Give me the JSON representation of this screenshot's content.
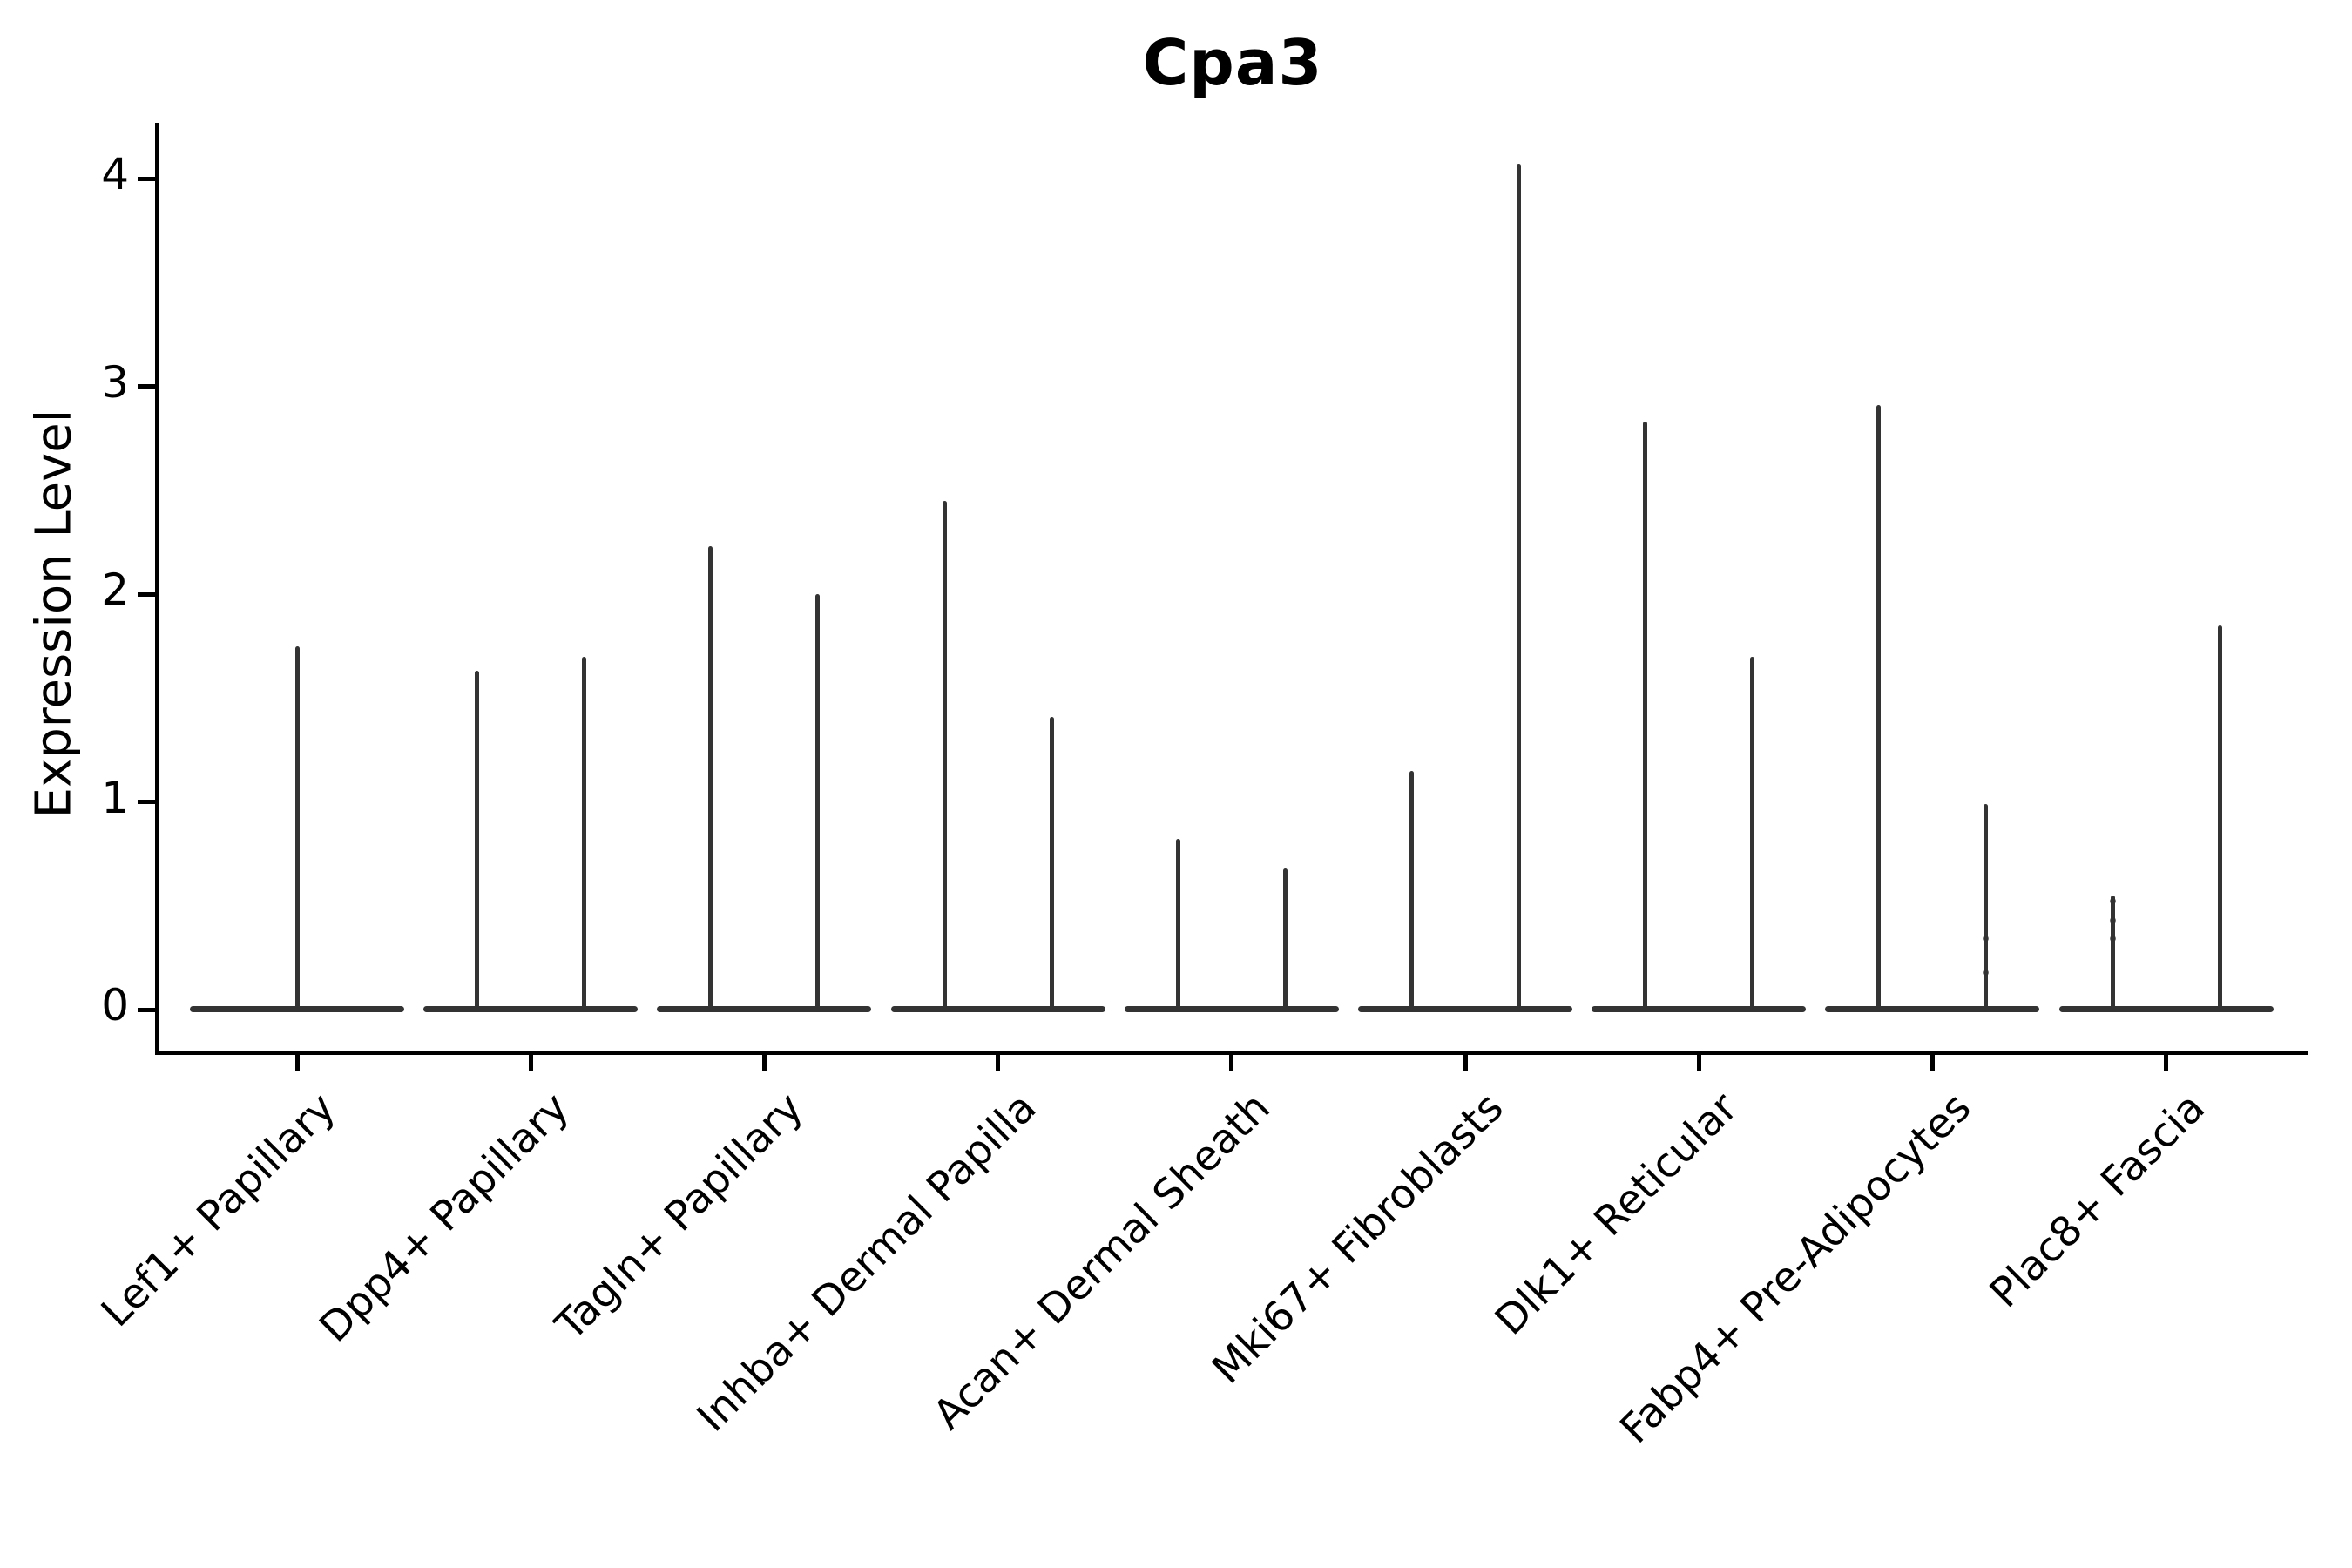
{
  "title": "Cpa3",
  "colors": {
    "violin": "#333333",
    "axis": "#000000",
    "text": "#000000",
    "background": "#ffffff"
  },
  "y_axis": {
    "label": "Expression Level",
    "tick_labels": [
      "0",
      "1",
      "2",
      "3",
      "4"
    ]
  },
  "chart_data": {
    "type": "violin",
    "title": "Cpa3",
    "xlabel": "",
    "ylabel": "Expression Level",
    "y_ticks": [
      0,
      1,
      2,
      3,
      4
    ],
    "ylim": [
      -0.21,
      4.27
    ],
    "grid": false,
    "legend": "none",
    "categories": [
      "Lef1+ Papillary",
      "Dpp4+ Papillary",
      "Tagln+ Papillary",
      "Inhba+ Dermal Papilla",
      "Acan+ Dermal Sheath",
      "Mki67+ Fibroblasts",
      "Dlk1+ Reticular",
      "Fabp4+ Pre-Adipocytes",
      "Plac8+ Fascia"
    ],
    "groups": [
      {
        "category": "Lef1+ Papillary",
        "spikes": [
          {
            "slot": "center",
            "max": 1.75
          }
        ]
      },
      {
        "category": "Dpp4+ Papillary",
        "spikes": [
          {
            "slot": "left",
            "max": 1.63
          },
          {
            "slot": "right",
            "max": 1.7
          }
        ]
      },
      {
        "category": "Tagln+ Papillary",
        "spikes": [
          {
            "slot": "left",
            "max": 2.23
          },
          {
            "slot": "right",
            "max": 2.0
          }
        ]
      },
      {
        "category": "Inhba+ Dermal Papilla",
        "spikes": [
          {
            "slot": "left",
            "max": 2.45
          },
          {
            "slot": "right",
            "max": 1.41
          }
        ]
      },
      {
        "category": "Acan+ Dermal Sheath",
        "spikes": [
          {
            "slot": "left",
            "max": 0.82
          },
          {
            "slot": "right",
            "max": 0.68
          }
        ]
      },
      {
        "category": "Mki67+ Fibroblasts",
        "spikes": [
          {
            "slot": "left",
            "max": 1.15
          },
          {
            "slot": "right",
            "max": 4.07
          }
        ]
      },
      {
        "category": "Dlk1+ Reticular",
        "spikes": [
          {
            "slot": "left",
            "max": 2.83
          },
          {
            "slot": "right",
            "max": 1.7
          }
        ]
      },
      {
        "category": "Fabp4+ Pre-Adipocytes",
        "spikes": [
          {
            "slot": "left",
            "max": 2.91
          },
          {
            "slot": "right",
            "max": 0.99,
            "points": [
              0.34,
              0.18
            ]
          }
        ]
      },
      {
        "category": "Plac8+ Fascia",
        "spikes": [
          {
            "slot": "left",
            "max": 0.55,
            "points": [
              0.52,
              0.43,
              0.34
            ]
          },
          {
            "slot": "right",
            "max": 1.85
          }
        ]
      }
    ]
  }
}
